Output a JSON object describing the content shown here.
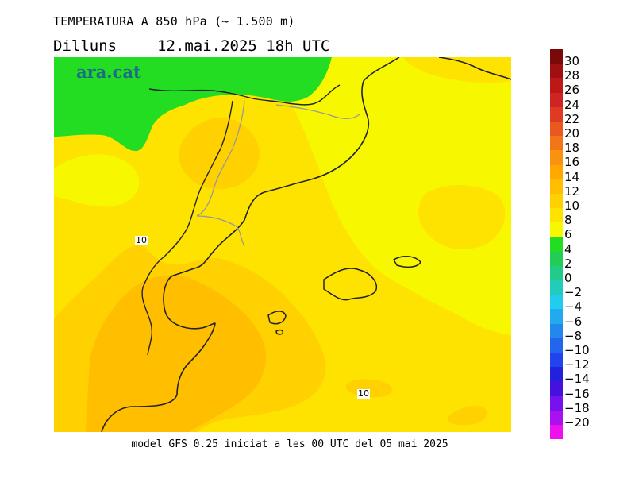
{
  "title": "TEMPERATURA A 850 hPa (~ 1.500 m)",
  "subtitle": {
    "day": "Dilluns",
    "datetime": "12.mai.2025 18h UTC"
  },
  "logo": "ara.cat",
  "footer": "model GFS 0.25 iniciat a les 00 UTC del 05 mai 2025",
  "contour_labels": [
    {
      "id": "contour-label-west",
      "text": "10"
    },
    {
      "id": "contour-label-south",
      "text": "10"
    }
  ],
  "colors": {
    "t4_6": "#22dd22",
    "t6_8": "#f7f700",
    "t8_10": "#ffe300",
    "t10_12": "#ffd100",
    "t12_14": "#ffbf00",
    "coast": "#222222",
    "border": "#999999"
  },
  "legend": {
    "labels": [
      "30",
      "28",
      "26",
      "24",
      "22",
      "20",
      "18",
      "16",
      "14",
      "12",
      "10",
      "8",
      "6",
      "4",
      "2",
      "0",
      "−2",
      "−4",
      "−6",
      "−8",
      "−10",
      "−12",
      "−14",
      "−16",
      "−18",
      "−20"
    ],
    "colors": [
      "#7a0a0a",
      "#a00f12",
      "#bc1818",
      "#d02422",
      "#df3a22",
      "#e85820",
      "#f07618",
      "#f89210",
      "#ffa800",
      "#ffbf00",
      "#ffd100",
      "#ffe300",
      "#f7f700",
      "#22dd22",
      "#22cc55",
      "#22cc88",
      "#22ccbb",
      "#22ccee",
      "#22aaee",
      "#2288ee",
      "#2266ee",
      "#2244ee",
      "#2222dd",
      "#4411dd",
      "#7711ee",
      "#aa11ee",
      "#ee11ee"
    ]
  }
}
